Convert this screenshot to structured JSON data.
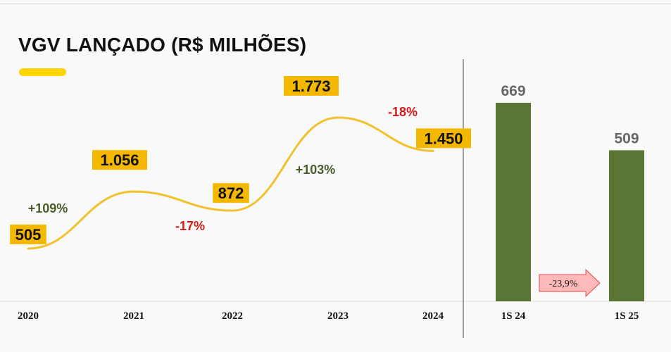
{
  "title": "VGV LANÇADO (R$ MILHÕES)",
  "colors": {
    "accent": "#ffd500",
    "line": "#f2c12e",
    "label_box": "#f5b800",
    "bar": "#5b7634",
    "positive": "#4a5e2a",
    "negative": "#d11a1a",
    "arrow_fill": "#ffb9b9",
    "arrow_stroke": "#e24a4a"
  },
  "chart_data": [
    {
      "type": "line",
      "categories": [
        "2020",
        "2021",
        "2022",
        "2023",
        "2024"
      ],
      "values": [
        505,
        1056,
        872,
        1773,
        1450
      ],
      "value_labels": [
        "505",
        "1.056",
        "872",
        "1.773",
        "1.450"
      ],
      "changes": [
        "+109%",
        "-17%",
        "+103%",
        "-18%"
      ]
    },
    {
      "type": "bar",
      "categories": [
        "1S 24",
        "1S 25"
      ],
      "values": [
        669,
        509
      ],
      "value_labels": [
        "669",
        "509"
      ],
      "change": "-23,9%"
    }
  ]
}
